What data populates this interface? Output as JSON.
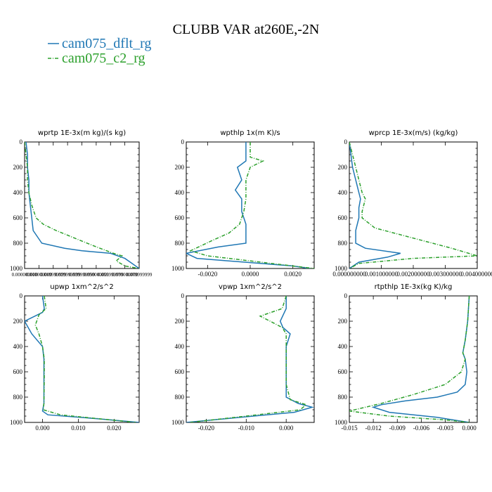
{
  "title": "CLUBB VAR at260E,-2N",
  "colors": {
    "dflt": "#1f77b4",
    "c2": "#2ca02c"
  },
  "legend": [
    {
      "label": "cam075_dflt_rg",
      "color": "#1f77b4",
      "dash": "solid"
    },
    {
      "label": "cam075_c2_rg",
      "color": "#2ca02c",
      "dash": "dashdot"
    }
  ],
  "chart_data": [
    {
      "type": "line",
      "title": "wprtp  1E-3x(m kg)/(s kg)",
      "xlim": [
        0,
        0.08
      ],
      "ylim": [
        1000,
        0
      ],
      "xticks": [
        0,
        0.01,
        0.02,
        0.03,
        0.04,
        0.05,
        0.06,
        0.07,
        0.08
      ],
      "xtick_labels": [
        "0.000000000",
        "0.010000000",
        "0.019999999",
        "0.029999999",
        "0.039999999",
        "0.050000001",
        "0.059999999",
        "0.070000000",
        "0.079999999"
      ],
      "yticks": [
        0,
        200,
        400,
        600,
        800,
        1000
      ],
      "ytick_labels": [
        "0",
        "200",
        "400",
        "600",
        "800",
        "1000"
      ],
      "series": [
        {
          "name": "cam075_dflt_rg",
          "x": [
            0.001,
            0.002,
            0.002,
            0.003,
            0.003,
            0.004,
            0.005,
            0.006,
            0.012,
            0.028,
            0.04,
            0.06,
            0.07,
            0.075,
            0.08
          ],
          "y": [
            0,
            100,
            200,
            300,
            400,
            500,
            600,
            700,
            800,
            840,
            860,
            880,
            920,
            960,
            1000
          ]
        },
        {
          "name": "cam075_c2_rg",
          "x": [
            0.0,
            0.001,
            0.002,
            0.002,
            0.003,
            0.005,
            0.008,
            0.013,
            0.022,
            0.035,
            0.048,
            0.062,
            0.068,
            0.064,
            0.07,
            0.08
          ],
          "y": [
            0,
            100,
            200,
            300,
            400,
            500,
            600,
            650,
            700,
            760,
            820,
            880,
            900,
            940,
            980,
            1000
          ]
        }
      ]
    },
    {
      "type": "line",
      "title": "wpthlp  1x(m K)/s",
      "xlim": [
        -0.003,
        0.003
      ],
      "ylim": [
        1000,
        0
      ],
      "xticks": [
        -0.002,
        0,
        0.002
      ],
      "xtick_labels": [
        "-0.0020",
        "0.0000",
        "0.0020"
      ],
      "yticks": [
        0,
        200,
        400,
        600,
        800,
        1000
      ],
      "ytick_labels": [
        "0",
        "200",
        "400",
        "600",
        "800",
        "1000"
      ],
      "series": [
        {
          "name": "cam075_dflt_rg",
          "x": [
            -0.0002,
            -0.0002,
            -0.0006,
            -0.0004,
            -0.0007,
            -0.0004,
            -0.0004,
            -0.0002,
            -0.0002,
            -0.0015,
            -0.003,
            -0.0025,
            -0.001,
            0.002,
            0.0028
          ],
          "y": [
            0,
            150,
            200,
            300,
            380,
            450,
            550,
            650,
            800,
            830,
            880,
            920,
            940,
            980,
            1000
          ]
        },
        {
          "name": "cam075_c2_rg",
          "x": [
            0.0,
            0.0,
            0.0006,
            0.0,
            -0.0002,
            -0.0002,
            -0.0003,
            -0.0005,
            -0.001,
            -0.0018,
            -0.0028,
            -0.002,
            0.003
          ],
          "y": [
            0,
            120,
            150,
            200,
            300,
            450,
            550,
            650,
            720,
            780,
            860,
            900,
            1000
          ]
        }
      ]
    },
    {
      "type": "line",
      "title": "wprcp  1E-3x(m/s) (kg/kg)",
      "xlim": [
        0,
        0.004
      ],
      "ylim": [
        1000,
        0
      ],
      "xticks": [
        0,
        0.001,
        0.002,
        0.003,
        0.004
      ],
      "xtick_labels": [
        "0.000000000",
        "0.001000000",
        "0.002000000",
        "0.003000000",
        "0.004000000"
      ],
      "yticks": [
        0,
        200,
        400,
        600,
        800,
        1000
      ],
      "ytick_labels": [
        "0",
        "200",
        "400",
        "600",
        "800",
        "1000"
      ],
      "series": [
        {
          "name": "cam075_dflt_rg",
          "x": [
            0.0,
            0.0001,
            0.0002,
            0.0003,
            0.00035,
            0.0003,
            0.0003,
            0.0002,
            0.0002,
            0.0005,
            0.0016,
            0.0012,
            0.0003,
            0.0
          ],
          "y": [
            0,
            200,
            300,
            400,
            450,
            520,
            600,
            700,
            800,
            840,
            880,
            910,
            950,
            1000
          ]
        },
        {
          "name": "cam075_c2_rg",
          "x": [
            0.0,
            0.0002,
            0.0003,
            0.0004,
            0.0005,
            0.0004,
            0.0004,
            0.0008,
            0.002,
            0.0032,
            0.004,
            0.002,
            0.0003,
            0.0
          ],
          "y": [
            0,
            200,
            300,
            400,
            450,
            550,
            600,
            680,
            760,
            840,
            900,
            920,
            960,
            1000
          ]
        }
      ]
    },
    {
      "type": "line",
      "title": "upwp  1xm^2/s^2",
      "xlim": [
        -0.005,
        0.027
      ],
      "ylim": [
        1000,
        0
      ],
      "xticks": [
        0,
        0.01,
        0.02
      ],
      "xtick_labels": [
        "0.000",
        "0.010",
        "0.020"
      ],
      "yticks": [
        0,
        200,
        400,
        600,
        800,
        1000
      ],
      "ytick_labels": [
        "0",
        "200",
        "400",
        "600",
        "800",
        "1000"
      ],
      "series": [
        {
          "name": "cam075_dflt_rg",
          "x": [
            0.0,
            0.0005,
            0.0,
            -0.005,
            -0.003,
            0.0,
            0.0004,
            0.0004,
            0.0004,
            0.0,
            0.0015,
            0.015,
            0.027
          ],
          "y": [
            0,
            100,
            130,
            200,
            300,
            400,
            500,
            650,
            850,
            910,
            940,
            970,
            1000
          ]
        },
        {
          "name": "cam075_c2_rg",
          "x": [
            0.0005,
            0.001,
            -0.001,
            -0.002,
            -0.001,
            0.0,
            0.0005,
            0.0005,
            0.0004,
            0.0002,
            0.005,
            0.026
          ],
          "y": [
            0,
            100,
            150,
            230,
            300,
            400,
            500,
            650,
            850,
            900,
            940,
            1000
          ]
        }
      ]
    },
    {
      "type": "line",
      "title": "vpwp  1xm^2/s^2",
      "xlim": [
        -0.025,
        0.007
      ],
      "ylim": [
        1000,
        0
      ],
      "xticks": [
        -0.02,
        -0.01,
        0
      ],
      "xtick_labels": [
        "-0.020",
        "-0.010",
        "0.000"
      ],
      "yticks": [
        0,
        200,
        400,
        600,
        800,
        1000
      ],
      "ytick_labels": [
        "0",
        "200",
        "400",
        "600",
        "800",
        "1000"
      ],
      "series": [
        {
          "name": "cam075_dflt_rg",
          "x": [
            0.0,
            0.0,
            -0.0015,
            -0.0008,
            0.001,
            0.0,
            0.0,
            0.0,
            0.0,
            0.003,
            0.0065,
            0.002,
            -0.025
          ],
          "y": [
            0,
            100,
            200,
            250,
            300,
            400,
            500,
            600,
            800,
            850,
            880,
            920,
            1000
          ]
        },
        {
          "name": "cam075_c2_rg",
          "x": [
            0.0,
            -0.001,
            -0.0065,
            -0.004,
            -0.001,
            0.0,
            0.0,
            0.0,
            0.001,
            0.005,
            0.0035,
            -0.01,
            -0.024
          ],
          "y": [
            0,
            100,
            160,
            200,
            250,
            300,
            500,
            700,
            820,
            860,
            900,
            950,
            1000
          ]
        }
      ]
    },
    {
      "type": "line",
      "title": "rtpthlp  1E-3x(kg K)/kg",
      "xlim": [
        -0.015,
        0.001
      ],
      "ylim": [
        1000,
        0
      ],
      "xticks": [
        -0.015,
        -0.012,
        -0.009,
        -0.006,
        -0.003,
        0
      ],
      "xtick_labels": [
        "-0.015",
        "-0.012",
        "-0.009",
        "-0.006",
        "-0.003",
        "0.000"
      ],
      "yticks": [
        0,
        200,
        400,
        600,
        800,
        1000
      ],
      "ytick_labels": [
        "0",
        "200",
        "400",
        "600",
        "800",
        "1000"
      ],
      "series": [
        {
          "name": "cam075_dflt_rg",
          "x": [
            0.0,
            -0.0002,
            -0.0005,
            -0.0008,
            -0.0005,
            -0.0003,
            -0.0005,
            -0.0015,
            -0.004,
            -0.008,
            -0.011,
            -0.012,
            -0.01,
            -0.004,
            0.0
          ],
          "y": [
            0,
            200,
            350,
            450,
            500,
            600,
            700,
            760,
            800,
            830,
            860,
            880,
            920,
            960,
            1000
          ]
        },
        {
          "name": "cam075_c2_rg",
          "x": [
            0.0,
            -0.0002,
            -0.0005,
            -0.0008,
            -0.0005,
            -0.001,
            -0.003,
            -0.007,
            -0.011,
            -0.015,
            -0.01,
            -0.003,
            0.0
          ],
          "y": [
            0,
            200,
            350,
            450,
            500,
            600,
            700,
            780,
            850,
            910,
            950,
            980,
            1000
          ]
        }
      ]
    }
  ]
}
